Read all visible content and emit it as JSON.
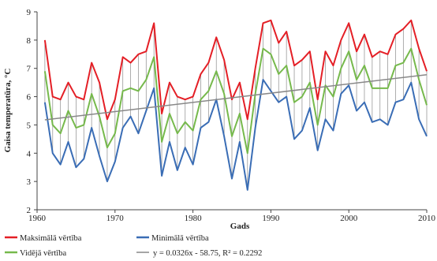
{
  "chart_data": {
    "type": "line",
    "title": "",
    "xlabel": "Gads",
    "ylabel": "Gaisa temperatūra, °C",
    "xlim": [
      1960,
      2010
    ],
    "ylim": [
      2,
      9
    ],
    "x_ticks": [
      "1960",
      "1970",
      "1980",
      "1990",
      "2000",
      "2010"
    ],
    "y_ticks": [
      "2",
      "3",
      "4",
      "5",
      "6",
      "7",
      "8",
      "9"
    ],
    "grid": false,
    "legend_position": "bottom",
    "x": [
      1961,
      1962,
      1963,
      1964,
      1965,
      1966,
      1967,
      1968,
      1969,
      1970,
      1971,
      1972,
      1973,
      1974,
      1975,
      1976,
      1977,
      1978,
      1979,
      1980,
      1981,
      1982,
      1983,
      1984,
      1985,
      1986,
      1987,
      1988,
      1989,
      1990,
      1991,
      1992,
      1993,
      1994,
      1995,
      1996,
      1997,
      1998,
      1999,
      2000,
      2001,
      2002,
      2003,
      2004,
      2005,
      2006,
      2007,
      2008,
      2009,
      2010
    ],
    "series": [
      {
        "name": "Maksimālā vērtība",
        "color": "#e41f26",
        "values": [
          8.0,
          6.0,
          5.9,
          6.5,
          6.0,
          5.9,
          7.2,
          6.5,
          5.2,
          5.9,
          7.4,
          7.2,
          7.5,
          7.6,
          8.6,
          5.4,
          6.5,
          6.0,
          5.9,
          6.0,
          6.8,
          7.2,
          8.1,
          7.3,
          5.9,
          6.5,
          5.2,
          7.0,
          8.6,
          8.7,
          7.9,
          8.3,
          7.1,
          7.3,
          7.6,
          5.9,
          7.6,
          7.1,
          8.0,
          8.6,
          7.6,
          8.2,
          7.4,
          7.6,
          7.5,
          8.2,
          8.4,
          8.7,
          7.7,
          6.9
        ]
      },
      {
        "name": "Minimālā vērtība",
        "color": "#3a6db5",
        "values": [
          5.8,
          4.0,
          3.6,
          4.4,
          3.5,
          3.8,
          4.9,
          3.9,
          3.0,
          3.7,
          4.9,
          5.3,
          4.7,
          5.5,
          6.3,
          3.2,
          4.4,
          3.4,
          4.2,
          3.6,
          4.9,
          5.1,
          5.9,
          4.6,
          3.1,
          4.4,
          2.7,
          4.9,
          6.6,
          6.2,
          5.8,
          6.0,
          4.5,
          4.8,
          5.6,
          4.1,
          5.2,
          4.8,
          6.1,
          6.4,
          5.5,
          5.8,
          5.1,
          5.2,
          5.0,
          5.8,
          5.9,
          6.5,
          5.2,
          4.6
        ]
      },
      {
        "name": "Vidējā vērtība",
        "color": "#76b94c",
        "values": [
          6.9,
          5.0,
          4.7,
          5.5,
          4.9,
          5.0,
          6.1,
          5.3,
          4.2,
          4.7,
          6.2,
          6.3,
          6.2,
          6.6,
          7.4,
          4.4,
          5.4,
          4.7,
          5.1,
          4.8,
          5.9,
          6.2,
          6.9,
          6.1,
          4.6,
          5.4,
          4.0,
          6.1,
          7.7,
          7.5,
          6.8,
          7.1,
          5.8,
          6.0,
          6.5,
          5.0,
          6.4,
          6.0,
          7.0,
          7.6,
          6.6,
          7.1,
          6.3,
          6.3,
          6.3,
          7.1,
          7.2,
          7.7,
          6.6,
          5.7
        ]
      }
    ],
    "trendline": {
      "label": "y = 0.0326x - 58.75, R² = 0.2292",
      "color": "#888888",
      "slope": 0.0326,
      "intercept": -58.75,
      "x_start": 1961,
      "x_end": 2010
    }
  }
}
